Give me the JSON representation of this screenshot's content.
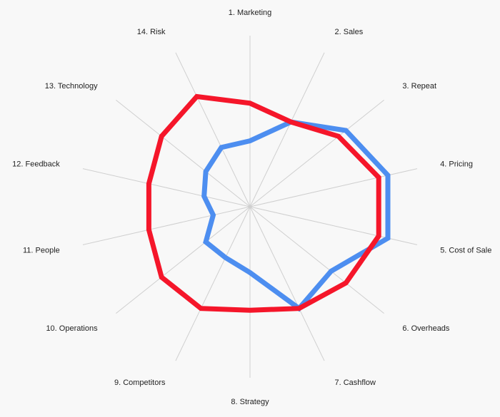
{
  "chart_data": {
    "type": "radar",
    "title": "",
    "axes": [
      "1. Marketing",
      "2. Sales",
      "3. Repeat",
      "4. Pricing",
      "5. Cost of Sale",
      "6. Overheads",
      "7. Cashflow",
      "8. Strategy",
      "9. Competitors",
      "10. Operations",
      "11. People",
      "12. Feedback",
      "13. Technology",
      "14. Risk"
    ],
    "range": [
      0,
      10
    ],
    "grid": true,
    "legend": "none",
    "series": [
      {
        "color": "#4d8ef0",
        "values": [
          3.5,
          5.0,
          6.5,
          7.5,
          7.5,
          5.5,
          6.0,
          3.5,
          3.0,
          3.0,
          2.0,
          2.5,
          3.0,
          3.5
        ]
      },
      {
        "color": "#f5162a",
        "values": [
          5.5,
          5.0,
          6.0,
          7.0,
          7.0,
          6.5,
          6.0,
          5.5,
          6.0,
          6.0,
          5.5,
          5.5,
          6.0,
          6.5
        ]
      }
    ]
  }
}
